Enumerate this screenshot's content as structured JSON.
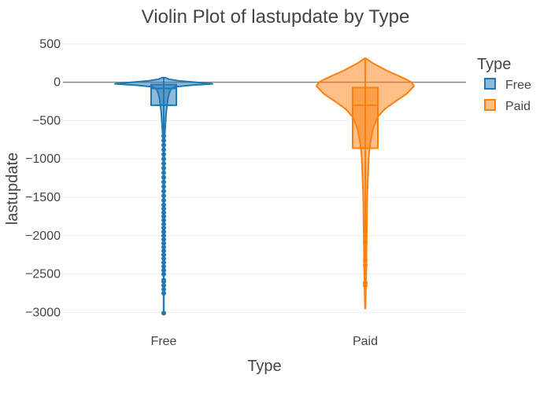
{
  "chart_data": {
    "type": "violin",
    "title": "Violin Plot of lastupdate by Type",
    "xlabel": "Type",
    "ylabel": "lastupdate",
    "categories": [
      "Free",
      "Paid"
    ],
    "ylim": [
      -3150,
      560
    ],
    "yticks": [
      500,
      0,
      -500,
      -1000,
      -1500,
      -2000,
      -2500,
      -3000
    ],
    "ytick_labels": [
      "500",
      "0",
      "−500",
      "−1000",
      "−1500",
      "−2000",
      "−2500",
      "−3000"
    ],
    "grid": true,
    "legend": {
      "title": "Type",
      "position": "top-right",
      "entries": [
        "Free",
        "Paid"
      ]
    },
    "series": [
      {
        "name": "Free",
        "color": "#1f77b4",
        "box": {
          "q1": -300,
          "median": -80,
          "q3": -30,
          "min": -3020,
          "max": 60
        },
        "density": [
          [
            60,
            0.03
          ],
          [
            40,
            0.1
          ],
          [
            20,
            0.3
          ],
          [
            0,
            0.65
          ],
          [
            -20,
            1.0
          ],
          [
            -40,
            0.55
          ],
          [
            -60,
            0.22
          ],
          [
            -100,
            0.14
          ],
          [
            -150,
            0.11
          ],
          [
            -200,
            0.09
          ],
          [
            -300,
            0.07
          ],
          [
            -400,
            0.05
          ],
          [
            -500,
            0.04
          ],
          [
            -600,
            0.03
          ],
          [
            -700,
            0.02
          ],
          [
            -800,
            0.01
          ],
          [
            -1000,
            0.008
          ],
          [
            -1500,
            0.006
          ],
          [
            -2000,
            0.005
          ],
          [
            -2500,
            0.004
          ],
          [
            -3020,
            0.003
          ]
        ],
        "outliers": [
          -700,
          -760,
          -820,
          -880,
          -940,
          -1000,
          -1060,
          -1120,
          -1180,
          -1240,
          -1300,
          -1360,
          -1420,
          -1480,
          -1540,
          -1600,
          -1650,
          -1700,
          -1750,
          -1800,
          -1850,
          -1900,
          -1950,
          -2000,
          -2050,
          -2100,
          -2150,
          -2200,
          -2250,
          -2300,
          -2350,
          -2400,
          -2450,
          -2500,
          -2580,
          -2600,
          -2650,
          -2700,
          -2750,
          -3010
        ]
      },
      {
        "name": "Paid",
        "color": "#ff7f0e",
        "box": {
          "q1": -860,
          "median": -300,
          "q3": -70,
          "min": -2950,
          "max": 310
        },
        "density": [
          [
            310,
            0.02
          ],
          [
            250,
            0.15
          ],
          [
            150,
            0.45
          ],
          [
            50,
            0.8
          ],
          [
            0,
            0.95
          ],
          [
            -50,
            1.0
          ],
          [
            -150,
            0.85
          ],
          [
            -250,
            0.62
          ],
          [
            -350,
            0.4
          ],
          [
            -450,
            0.26
          ],
          [
            -600,
            0.16
          ],
          [
            -800,
            0.1
          ],
          [
            -1000,
            0.07
          ],
          [
            -1500,
            0.04
          ],
          [
            -2000,
            0.03
          ],
          [
            -2500,
            0.02
          ],
          [
            -2950,
            0.005
          ]
        ],
        "outliers": [
          -2080,
          -2320,
          -2380,
          -2620,
          -2650
        ]
      }
    ]
  }
}
